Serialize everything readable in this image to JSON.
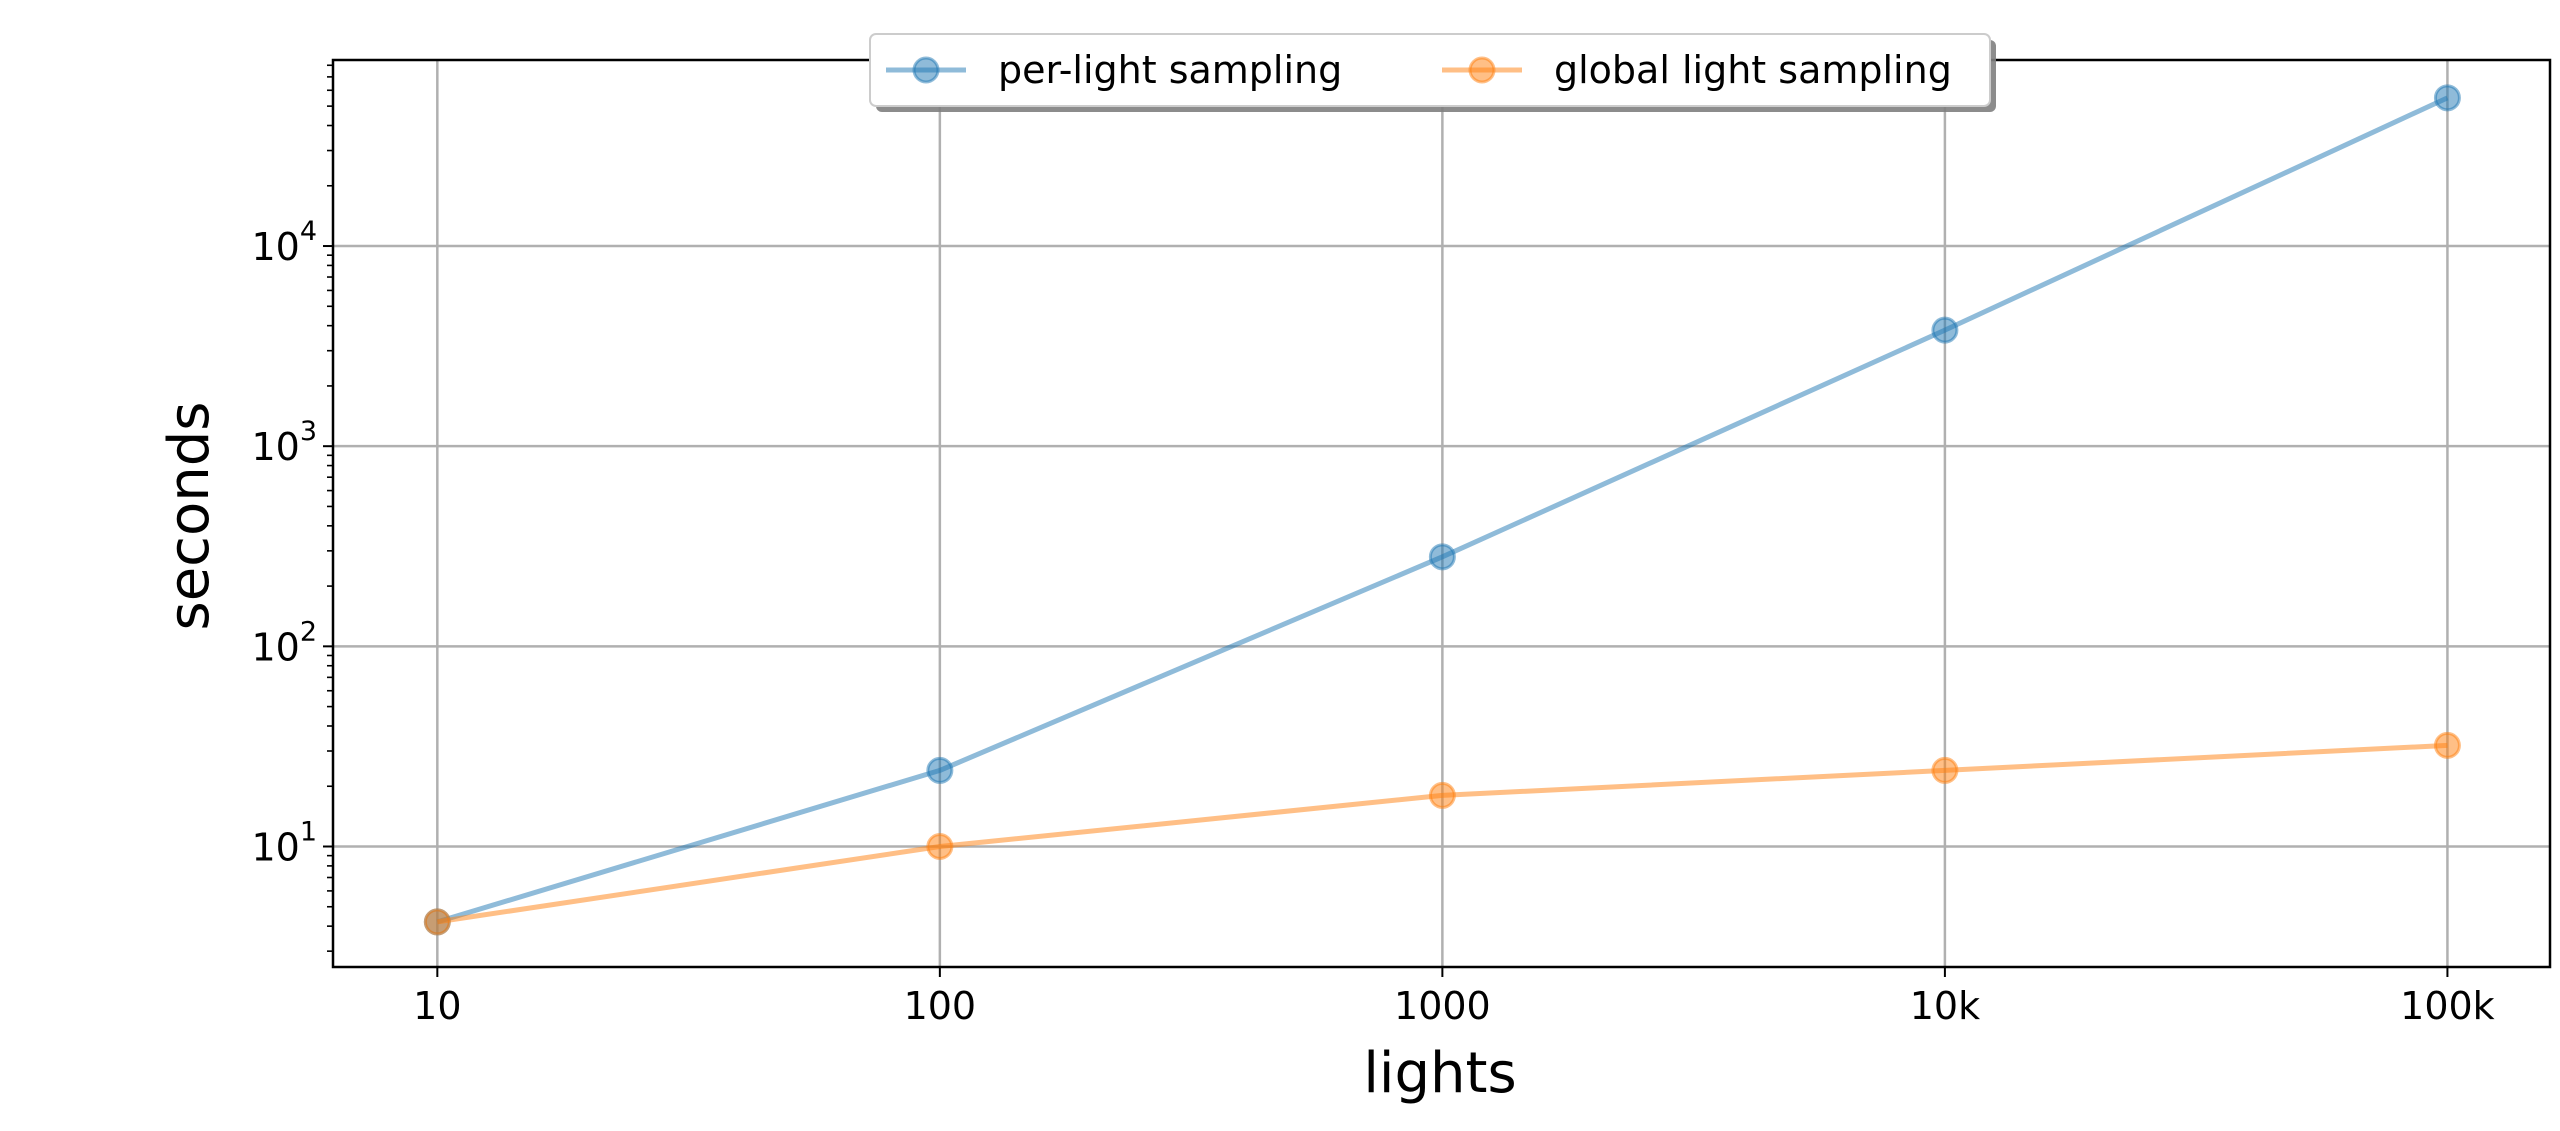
{
  "chart_data": {
    "type": "line",
    "title": "",
    "xlabel": "lights",
    "ylabel": "seconds",
    "xscale": "log",
    "yscale": "log",
    "x": [
      10,
      100,
      1000,
      10000,
      100000
    ],
    "x_tick_labels": [
      "10",
      "100",
      "1000",
      "10k",
      "100k"
    ],
    "y_ticks": [
      {
        "value": 10,
        "mantissa": "10",
        "exponent": "1"
      },
      {
        "value": 100,
        "mantissa": "10",
        "exponent": "2"
      },
      {
        "value": 1000,
        "mantissa": "10",
        "exponent": "3"
      },
      {
        "value": 10000,
        "mantissa": "10",
        "exponent": "4"
      }
    ],
    "ylim": [
      2.5,
      85000
    ],
    "xlim": [
      6.2,
      160000
    ],
    "grid": true,
    "legend_position": "top-center",
    "series": [
      {
        "name": "per-light sampling",
        "color": "#1f77b4",
        "values": [
          4.2,
          24,
          280,
          3800,
          55000
        ]
      },
      {
        "name": "global light sampling",
        "color": "#ff7f0e",
        "values": [
          4.2,
          10,
          18,
          24,
          32
        ]
      }
    ]
  }
}
